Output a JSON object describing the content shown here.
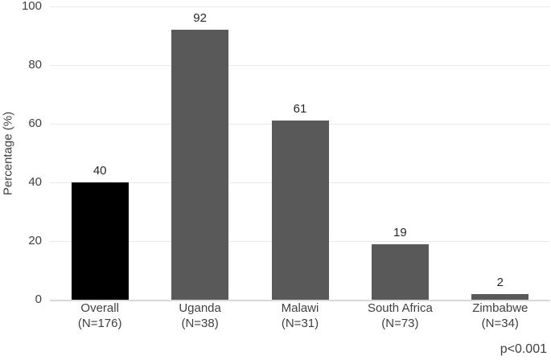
{
  "chart_data": {
    "type": "bar",
    "categories": [
      "Overall",
      "Uganda",
      "Malawi",
      "South Africa",
      "Zimbabwe"
    ],
    "category_sublabels": [
      "(N=176)",
      "(N=38)",
      "(N=31)",
      "(N=73)",
      "(N=34)"
    ],
    "values": [
      40,
      92,
      61,
      19,
      2
    ],
    "value_labels": [
      "40",
      "92",
      "61",
      "19",
      "2"
    ],
    "bar_colors": [
      "#000000",
      "#595959",
      "#595959",
      "#595959",
      "#595959"
    ],
    "title": "",
    "xlabel": "",
    "ylabel": "Percentage (%)",
    "ylim": [
      0,
      100
    ],
    "yticks": [
      0,
      20,
      40,
      60,
      80,
      100
    ],
    "grid": true,
    "legend": "none",
    "annotation": "p<0.001",
    "colors": {
      "gridline": "#e9e9e9",
      "axis_line": "#d9d9d9",
      "text": "#404040",
      "value_text": "#262626"
    }
  }
}
